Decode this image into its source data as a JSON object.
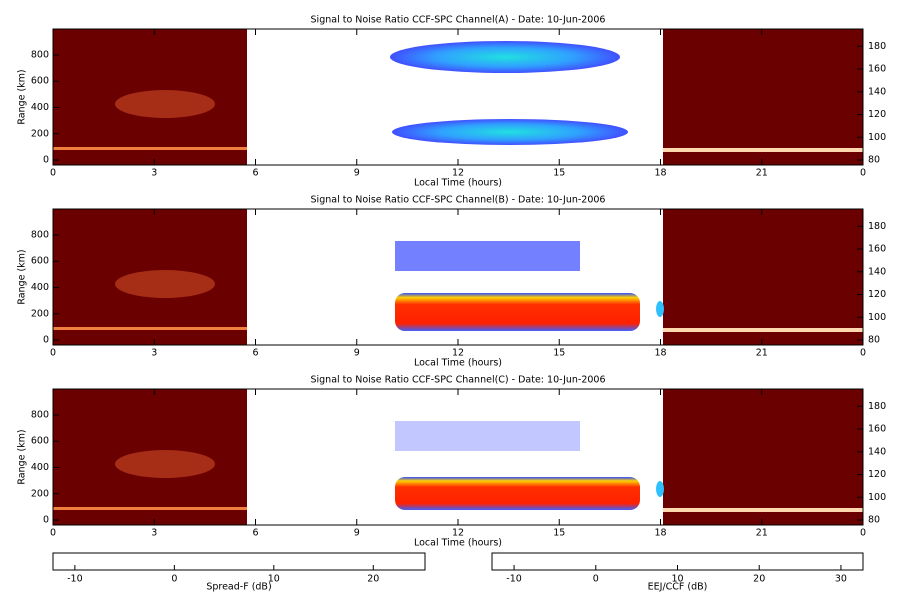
{
  "chart_data": [
    {
      "type": "heatmap",
      "title": "Signal to Noise Ratio CCF-SPC Channel(A) - Date: 10-Jun-2006",
      "x_label": "Local Time (hours)",
      "y_label": "Range (km)",
      "xlim": [
        0,
        24
      ],
      "xticks": [
        0,
        3,
        6,
        9,
        12,
        15,
        18,
        21,
        {
          "value": 24,
          "label": "0"
        }
      ],
      "ylim": [
        -38,
        998
      ],
      "yticks": [
        0,
        200,
        400,
        600,
        800
      ],
      "y2lim": [
        75.6,
        195.2
      ],
      "y2ticks": [
        80,
        100,
        120,
        140,
        160,
        180
      ]
    },
    {
      "type": "heatmap",
      "title": "Signal to Noise Ratio CCF-SPC Channel(B) - Date: 10-Jun-2006",
      "x_label": "Local Time (hours)",
      "y_label": "Range (km)",
      "xlim": [
        0,
        24
      ],
      "xticks": [
        0,
        3,
        6,
        9,
        12,
        15,
        18,
        21,
        {
          "value": 24,
          "label": "0"
        }
      ],
      "ylim": [
        -38,
        998
      ],
      "yticks": [
        0,
        200,
        400,
        600,
        800
      ],
      "y2lim": [
        75.6,
        195.2
      ],
      "y2ticks": [
        80,
        100,
        120,
        140,
        160,
        180
      ]
    },
    {
      "type": "heatmap",
      "title": "Signal to Noise Ratio CCF-SPC Channel(C) - Date: 10-Jun-2006",
      "x_label": "Local Time (hours)",
      "y_label": "Range (km)",
      "xlim": [
        0,
        24
      ],
      "xticks": [
        0,
        3,
        6,
        9,
        12,
        15,
        18,
        21,
        {
          "value": 24,
          "label": "0"
        }
      ],
      "ylim": [
        -38,
        998
      ],
      "yticks": [
        0,
        200,
        400,
        600,
        800
      ],
      "y2lim": [
        75.6,
        195.2
      ],
      "y2ticks": [
        80,
        100,
        120,
        140,
        160,
        180
      ]
    }
  ],
  "colorbars": [
    {
      "label": "Spread-F (dB)",
      "lim": [
        -12.2,
        25.2
      ],
      "ticks": [
        -10,
        0,
        10,
        20
      ],
      "colors": [
        "#5a0000",
        "#8b0000",
        "#c83000",
        "#f08030",
        "#ffc890",
        "#ffffff"
      ]
    },
    {
      "label": "EEJ/CCF (dB)",
      "lim": [
        -12.7,
        32.7
      ],
      "ticks": [
        -10,
        0,
        10,
        20,
        30
      ],
      "colors": [
        "#ffffff",
        "#4040ff",
        "#00e0ff",
        "#00ff80",
        "#ffff00",
        "#ff0000"
      ]
    }
  ]
}
